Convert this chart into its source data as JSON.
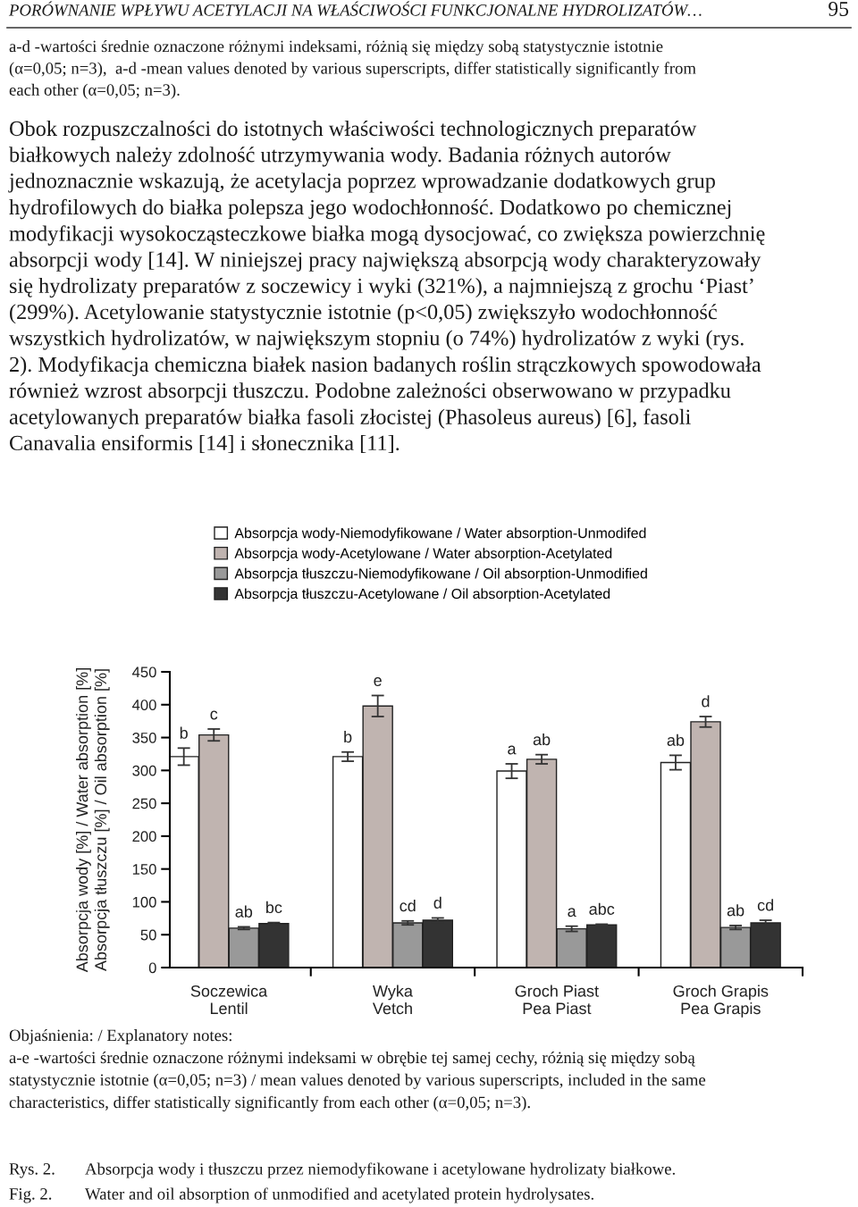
{
  "chart_data": {
    "type": "bar",
    "categories": [
      "Soczewica\nLentil",
      "Wyka\nVetch",
      "Groch Piast\nPea Piast",
      "Groch Grapis\nPea Grapis"
    ],
    "series": [
      {
        "name": "Absorpcja wody-Niemodyfikowane / Water absorption-Unmodifed",
        "color": "#ffffff",
        "values": [
          321,
          321,
          299,
          312
        ],
        "errors": [
          13,
          7,
          11,
          11
        ],
        "value_labels": [
          "b",
          "b",
          "a",
          "ab"
        ]
      },
      {
        "name": "Absorpcja wody-Acetylowane / Water absorption-Acetylated",
        "color": "#c0b4b0",
        "values": [
          354,
          398,
          317,
          374
        ],
        "errors": [
          9,
          16,
          7,
          8
        ],
        "value_labels": [
          "c",
          "e",
          "ab",
          "d"
        ]
      },
      {
        "name": "Absorpcja tłuszczu-Niemodyfikowane / Oil absorption-Unmodified",
        "color": "#999999",
        "values": [
          60,
          68,
          59,
          61
        ],
        "errors": [
          2,
          3,
          4,
          3
        ],
        "value_labels": [
          "ab",
          "cd",
          "a",
          "ab"
        ]
      },
      {
        "name": "Absorpcja tłuszczu-Acetylowane / Oil absorption-Acetylated",
        "color": "#333333",
        "values": [
          67,
          72,
          65,
          68
        ],
        "errors": [
          1.5,
          3.5,
          1,
          4
        ],
        "value_labels": [
          "bc",
          "d",
          "abc",
          "cd"
        ]
      }
    ],
    "ylabel": "Absorpcja wody [%] / Water absorption [%]\nAbsorpcja tłuszczu [%] / Oil absorption [%]",
    "ylim": [
      0,
      450
    ],
    "yticks": [
      0,
      50,
      100,
      150,
      200,
      250,
      300,
      350,
      400,
      450
    ],
    "legend": "top",
    "grid": false,
    "annotations": [
      "PORÓWNANIE WPŁYWU ACETYLACJI NA WŁAŚCIWOŚCI FUNKCJONALNE HYDROLIZATÓW…",
      "95",
      "a-d -wartości średnie oznaczone różnymi indeksami, różnią się między sobą statystycznie istotnie\n(α=0,05; n=3),  a-d -mean values denoted by various superscripts, differ statistically significantly from\neach other (α=0,05; n=3).",
      "Obok rozpuszczalności do istotnych właściwości technologicznych preparatów\nbiałkowych należy zdolność utrzymywania wody. Badania różnych autorów\njednoznacznie wskazują, że acetylacja poprzez wprowadzanie dodatkowych grup\nhydrofilowych do białka polepsza jego wodochłonność. Dodatkowo po chemicznej\nmodyfikacji wysokocząsteczkowe białka mogą dysocjować, co zwiększa powierzchnię\nabsorpcji wody [14]. W niniejszej pracy największą absorpcją wody charakteryzowały\nsię hydrolizaty preparatów z soczewicy i wyki (321%), a najmniejszą z grochu ‘Piast’\n(299%). Acetylowanie statystycznie istotnie (p<0,05) zwiększyło wodochłonność\nwszystkich hydrolizatów, w największym stopniu (o 74%) hydrolizatów z wyki (rys.\n2). Modyfikacja chemiczna białek nasion badanych roślin strączkowych spowodowała\nrównież wzrost absorpcji tłuszczu. Podobne zależności obserwowano w przypadku\nacetylowanych preparatów białka fasoli złocistej (Phasoleus aureus) [6], fasoli\nCanavalia ensiformis [14] i słonecznika [11].",
      "Objaśnienia: / Explanatory notes:\na-e -wartości średnie oznaczone różnymi indeksami w obrębie tej samej cechy, różnią się między sobą\nstatystycznie istotnie (α=0,05; n=3) / mean values denoted by various superscripts, included in the same\ncharacteristics, differ statistically significantly from each other (α=0,05; n=3).",
      "Rys. 2.",
      "Absorpcja wody i tłuszczu przez niemodyfikowane i acetylowane hydrolizaty białkowe.",
      "Fig. 2.",
      "Water and oil absorption of unmodified and acetylated protein hydrolysates."
    ]
  }
}
